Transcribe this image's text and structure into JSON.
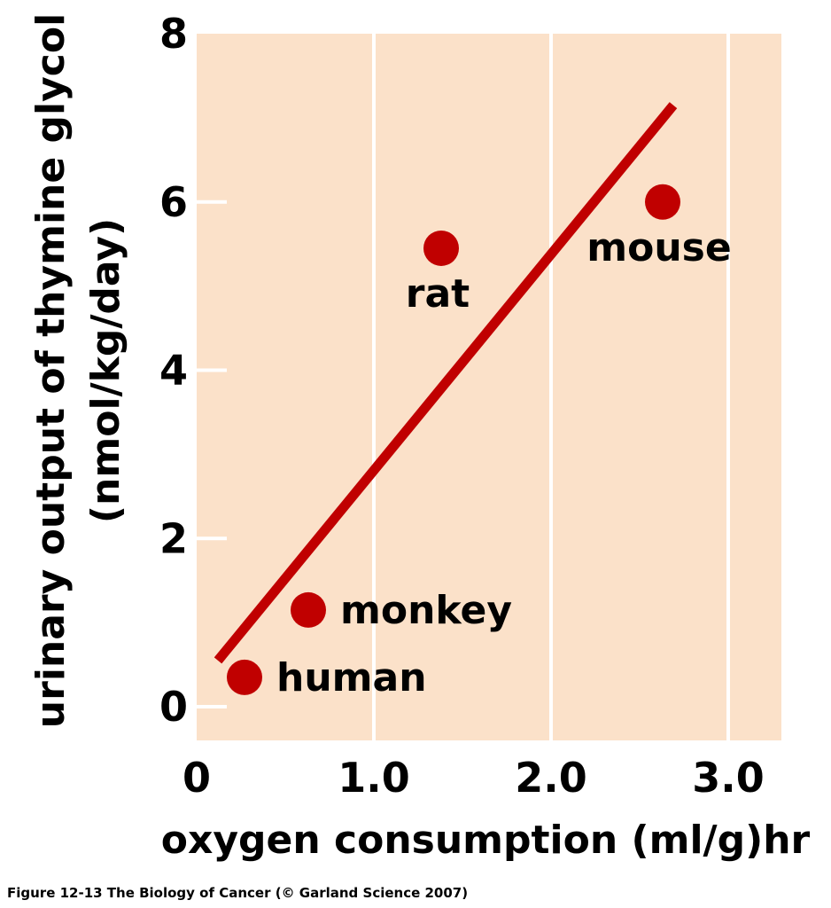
{
  "chart_data": {
    "type": "scatter",
    "xlabel": "oxygen consumption (ml/g)hr",
    "ylabel_line1": "urinary output of thymine glycol",
    "ylabel_line2": "(nmol/kg/day)",
    "xlim": [
      0,
      3.3
    ],
    "ylim": [
      -0.4,
      8
    ],
    "x_ticks": [
      0,
      1.0,
      2.0,
      3.0
    ],
    "x_tick_labels": [
      "0",
      "1.0",
      "2.0",
      "3.0"
    ],
    "y_ticks": [
      0,
      2,
      4,
      6,
      8
    ],
    "y_tick_labels": [
      "0",
      "2",
      "4",
      "6",
      "8"
    ],
    "grid": true,
    "colors": {
      "plot_background": "#fbe1c9",
      "point": "#c00000",
      "line": "#c00000",
      "grid": "#ffffff"
    },
    "points": [
      {
        "label": "human",
        "x": 0.27,
        "y": 0.35,
        "label_side": "right"
      },
      {
        "label": "monkey",
        "x": 0.63,
        "y": 1.15,
        "label_side": "right"
      },
      {
        "label": "rat",
        "x": 1.38,
        "y": 5.45,
        "label_side": "below"
      },
      {
        "label": "mouse",
        "x": 2.63,
        "y": 6.0,
        "label_side": "below"
      }
    ],
    "trend_line": {
      "x": [
        0.12,
        2.69
      ],
      "y": [
        0.55,
        7.15
      ]
    }
  },
  "caption": "Figure 12-13  The Biology of Cancer (© Garland Science 2007)"
}
